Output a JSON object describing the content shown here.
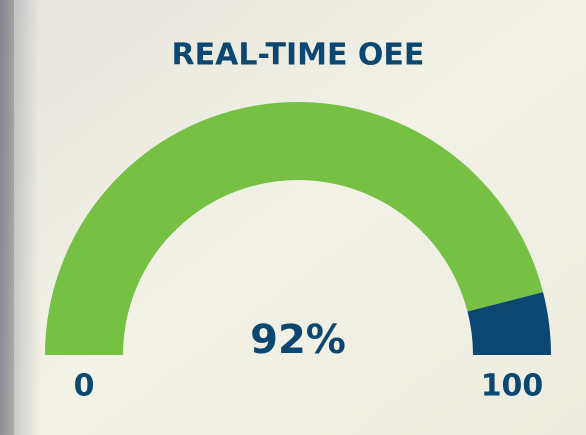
{
  "chart_data": {
    "type": "gauge",
    "title": "REAL-TIME OEE",
    "value": 92,
    "value_label": "92%",
    "ylim": [
      0,
      100
    ],
    "yticks": [
      0,
      100
    ],
    "color": "#76c043",
    "track_color": "#0b4770"
  }
}
